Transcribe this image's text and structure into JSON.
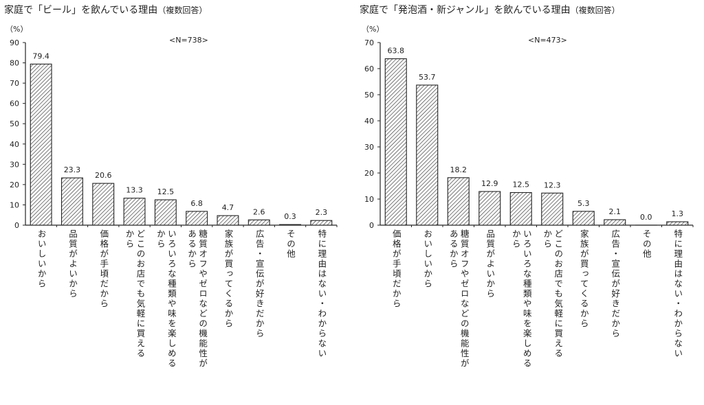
{
  "chart_data": [
    {
      "type": "bar",
      "title": "家庭で「ビール」を飲んでいる理由",
      "title_note": "（複数回答）",
      "ylabel": "（%）",
      "note": "<N=738>",
      "ylim": [
        0,
        90
      ],
      "yticks": [
        0,
        10,
        20,
        30,
        40,
        50,
        60,
        70,
        80,
        90
      ],
      "grid": false,
      "bar_style": "hatched",
      "categories": [
        [
          "おいしいから"
        ],
        [
          "品質がよいから"
        ],
        [
          "価格が手頃だから"
        ],
        [
          "どこのお店でも気軽に買える",
          "から"
        ],
        [
          "いろいろな種類や味を楽しめる",
          "から"
        ],
        [
          "糖質オフやゼロなどの機能性が",
          "あるから"
        ],
        [
          "家族が買ってくるから"
        ],
        [
          "広告・宣伝が好きだから"
        ],
        [
          "その他"
        ],
        [
          "特に理由はない・わからない"
        ]
      ],
      "values": [
        79.4,
        23.3,
        20.6,
        13.3,
        12.5,
        6.8,
        4.7,
        2.6,
        0.3,
        2.3
      ],
      "value_labels": [
        "79.4",
        "23.3",
        "20.6",
        "13.3",
        "12.5",
        "6.8",
        "4.7",
        "2.6",
        "0.3",
        "2.3"
      ]
    },
    {
      "type": "bar",
      "title": "家庭で「発泡酒・新ジャンル」を飲んでいる理由",
      "title_note": "（複数回答）",
      "ylabel": "（%）",
      "note": "<N=473>",
      "ylim": [
        0,
        70
      ],
      "yticks": [
        0,
        10,
        20,
        30,
        40,
        50,
        60,
        70
      ],
      "grid": false,
      "bar_style": "hatched",
      "categories": [
        [
          "価格が手頃だから"
        ],
        [
          "おいしいから"
        ],
        [
          "糖質オフやゼロなどの機能性が",
          "あるから"
        ],
        [
          "品質がよいから"
        ],
        [
          "いろいろな種類や味を楽しめる",
          "から"
        ],
        [
          "どこのお店でも気軽に買える",
          "から"
        ],
        [
          "家族が買ってくるから"
        ],
        [
          "広告・宣伝が好きだから"
        ],
        [
          "その他"
        ],
        [
          "特に理由はない・わからない"
        ]
      ],
      "values": [
        63.8,
        53.7,
        18.2,
        12.9,
        12.5,
        12.3,
        5.3,
        2.1,
        0.0,
        1.3
      ],
      "value_labels": [
        "63.8",
        "53.7",
        "18.2",
        "12.9",
        "12.5",
        "12.3",
        "5.3",
        "2.1",
        "0.0",
        "1.3"
      ]
    }
  ]
}
